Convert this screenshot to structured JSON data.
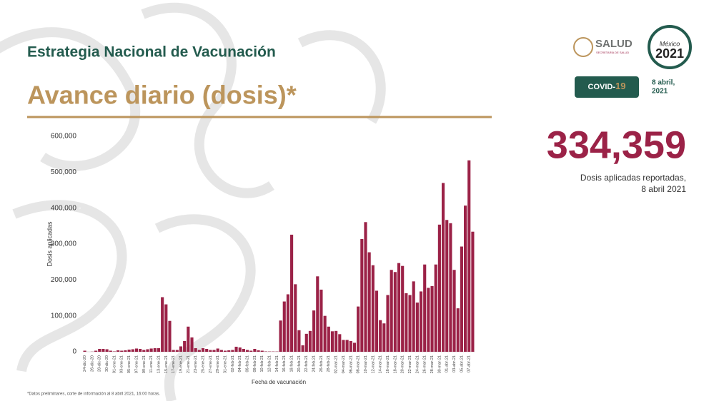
{
  "header": {
    "title": "Estrategia Nacional de Vacunación",
    "subtitle": "Avance diario (dosis)*",
    "logo_text": "SALUD",
    "logo_subtext": "SECRETARÍA DE SALUD",
    "logo2_text": "2021",
    "logo2_caption": "México",
    "badge_prefix": "COVID-",
    "badge_number": "19",
    "date": "8 abril,",
    "date_year": "2021"
  },
  "highlight": {
    "number": "334,359",
    "caption_line1": "Dosis aplicadas reportadas,",
    "caption_line2": "8 abril 2021"
  },
  "footnote": "*Datos preliminares, corte de información al 8 abril 2021, 16:00 horas.",
  "chart_data": {
    "type": "bar",
    "ylabel": "Dosis aplicadas",
    "xlabel": "Fecha de vacunación",
    "color": "#9b2247",
    "grid": false,
    "ylim": [
      0,
      600000
    ],
    "yticks": [
      0,
      {
        "value": 100000,
        "label": "100,000"
      },
      {
        "value": 200000,
        "label": "200,000"
      },
      {
        "value": 300000,
        "label": "300,000"
      },
      {
        "value": 400000,
        "label": "400,000"
      },
      {
        "value": 500000,
        "label": "500,000"
      },
      {
        "value": 600000,
        "label": "600,000"
      }
    ],
    "categories": [
      "24-dic-20",
      null,
      "26-dic-20",
      null,
      "28-dic-20",
      null,
      "30-dic-20",
      null,
      "01-ene-21",
      null,
      "03-ene-21",
      null,
      "05-ene-21",
      null,
      "07-ene-21",
      null,
      "09-ene-21",
      null,
      "11-ene-21",
      null,
      "13-ene-21",
      null,
      "15-ene-21",
      null,
      "17-ene-21",
      null,
      "19-ene-21",
      null,
      "21-ene-21",
      null,
      "23-ene-21",
      null,
      "25-ene-21",
      null,
      "27-ene-21",
      null,
      "29-ene-21",
      null,
      "31-ene-21",
      null,
      "02-feb-21",
      null,
      "04-feb-21",
      null,
      "06-feb-21",
      null,
      "08-feb-21",
      null,
      "10-feb-21",
      null,
      "12-feb-21",
      null,
      "14-feb-21",
      null,
      "16-feb-21",
      null,
      "18-feb-21",
      null,
      "20-feb-21",
      null,
      "22-feb-21",
      null,
      "24-feb-21",
      null,
      "26-feb-21",
      null,
      "28-feb-21",
      null,
      "02-mar-21",
      null,
      "04-mar-21",
      null,
      "06-mar-21",
      null,
      "08-mar-21",
      null,
      "10-mar-21",
      null,
      "12-mar-21",
      null,
      "14-mar-21",
      null,
      "16-mar-21",
      null,
      "18-mar-21",
      null,
      "20-mar-21",
      null,
      "22-mar-21",
      null,
      "24-mar-21",
      null,
      "26-mar-21",
      null,
      "28-mar-21",
      null,
      "30-mar-21",
      null,
      "01-abr-21",
      null,
      "03-abr-21",
      null,
      "05-abr-21",
      null,
      "07-abr-21",
      null
    ],
    "values": [
      3000,
      0,
      400,
      3000,
      8000,
      8000,
      7000,
      3000,
      1000,
      4000,
      3000,
      4000,
      6000,
      7000,
      9000,
      8000,
      5000,
      7000,
      9000,
      10000,
      10000,
      152000,
      132000,
      86000,
      5000,
      5000,
      15000,
      30000,
      70000,
      40000,
      10000,
      5000,
      10000,
      8000,
      5000,
      5000,
      9000,
      5000,
      3000,
      4000,
      5000,
      14000,
      12000,
      8000,
      5000,
      3000,
      8000,
      4000,
      3000,
      1000,
      800,
      800,
      700,
      87000,
      140000,
      160000,
      326000,
      188000,
      60000,
      18000,
      50000,
      58000,
      115000,
      210000,
      173000,
      100000,
      70000,
      57000,
      58000,
      49000,
      33000,
      33000,
      30000,
      25000,
      126000,
      314000,
      361000,
      277000,
      241000,
      170000,
      88000,
      79000,
      158000,
      228000,
      222000,
      247000,
      239000,
      163000,
      158000,
      196000,
      137000,
      168000,
      243000,
      178000,
      183000,
      243000,
      354000,
      470000,
      367000,
      358000,
      228000,
      121000,
      293000,
      407000,
      533000,
      334359
    ]
  }
}
